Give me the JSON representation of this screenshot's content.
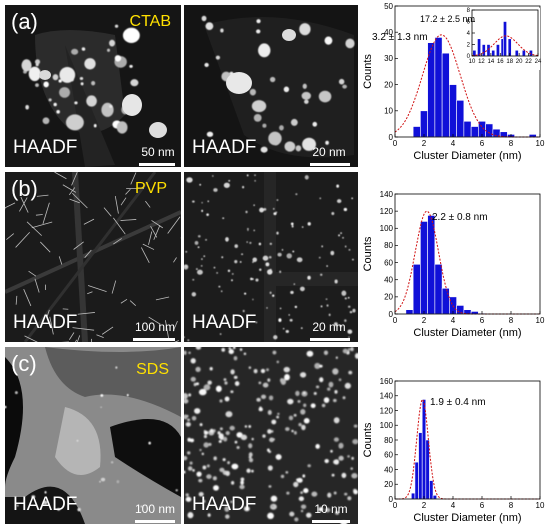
{
  "rows": [
    {
      "letter": "(a)",
      "surfactant": "CTAB",
      "left_image": {
        "label": "HAADF",
        "scalebar": "50 nm"
      },
      "right_image": {
        "label": "HAADF",
        "scalebar": "20 nm"
      }
    },
    {
      "letter": "(b)",
      "surfactant": "PVP",
      "left_image": {
        "label": "HAADF",
        "scalebar": "100 nm"
      },
      "right_image": {
        "label": "HAADF",
        "scalebar": "20 nm"
      }
    },
    {
      "letter": "(c)",
      "surfactant": "SDS",
      "left_image": {
        "label": "HAADF",
        "scalebar": "100 nm"
      },
      "right_image": {
        "label": "HAADF",
        "scalebar": "10 nm"
      }
    }
  ],
  "chart_data": [
    {
      "type": "bar",
      "xlabel": "Cluster Diameter (nm)",
      "ylabel": "Counts",
      "xlim": [
        0,
        10
      ],
      "ylim": [
        0,
        50
      ],
      "xticks": [
        0,
        2,
        4,
        6,
        8,
        10
      ],
      "yticks": [
        0,
        10,
        20,
        30,
        40,
        50
      ],
      "bin_width": 0.5,
      "bins": [
        1.5,
        2.0,
        2.5,
        3.0,
        3.5,
        4.0,
        4.5,
        5.0,
        5.5,
        6.0,
        6.5,
        7.0,
        7.5,
        8.0,
        9.5
      ],
      "values": [
        4,
        10,
        36,
        38,
        32,
        20,
        14,
        6,
        4,
        6,
        5,
        3,
        2,
        1,
        1
      ],
      "fit": {
        "mean": 3.2,
        "sigma": 1.3,
        "peak": 39
      },
      "annotation": "3.2 ± 1.3 nm",
      "inset": {
        "xlim": [
          10,
          24
        ],
        "ylim": [
          0,
          8
        ],
        "xticks": [
          10,
          12,
          14,
          16,
          18,
          20,
          22,
          24
        ],
        "yticks": [
          0,
          2,
          4,
          6,
          8
        ],
        "bin_width": 0.7,
        "bins": [
          10.5,
          11.5,
          12.5,
          13.5,
          14.5,
          15.5,
          16.5,
          17.0,
          18.0,
          19.5,
          21.0,
          22.5
        ],
        "values": [
          1,
          3,
          2,
          2,
          1,
          2,
          3,
          6,
          3,
          1,
          1,
          1
        ],
        "fit": {
          "mean": 17.2,
          "sigma": 2.5,
          "peak": 3.5
        },
        "annotation": "17.2 ± 2.5 nm"
      }
    },
    {
      "type": "bar",
      "xlabel": "Cluster Diameter (nm)",
      "ylabel": "Counts",
      "xlim": [
        0,
        10
      ],
      "ylim": [
        0,
        140
      ],
      "xticks": [
        0,
        2,
        4,
        6,
        8,
        10
      ],
      "yticks": [
        0,
        20,
        40,
        60,
        80,
        100,
        120,
        140
      ],
      "bin_width": 0.5,
      "bins": [
        1.0,
        1.5,
        2.0,
        2.5,
        3.0,
        3.5,
        4.0,
        4.5,
        5.0,
        5.5,
        6.0
      ],
      "values": [
        5,
        58,
        108,
        115,
        58,
        30,
        20,
        10,
        5,
        3,
        1
      ],
      "fit": {
        "mean": 2.2,
        "sigma": 0.8,
        "peak": 120
      },
      "annotation": "2.2 ± 0.8 nm"
    },
    {
      "type": "bar",
      "xlabel": "Cluster Diameter (nm)",
      "ylabel": "Counts",
      "xlim": [
        0,
        10
      ],
      "ylim": [
        0,
        160
      ],
      "xticks": [
        0,
        2,
        4,
        6,
        8,
        10
      ],
      "yticks": [
        0,
        20,
        40,
        60,
        80,
        100,
        120,
        140,
        160
      ],
      "bin_width": 0.25,
      "bins": [
        1.25,
        1.5,
        1.75,
        2.0,
        2.25,
        2.5,
        2.75
      ],
      "values": [
        8,
        50,
        90,
        135,
        80,
        25,
        5
      ],
      "fit": {
        "mean": 1.9,
        "sigma": 0.4,
        "peak": 135
      },
      "annotation": "1.9 ± 0.4 nm"
    }
  ]
}
